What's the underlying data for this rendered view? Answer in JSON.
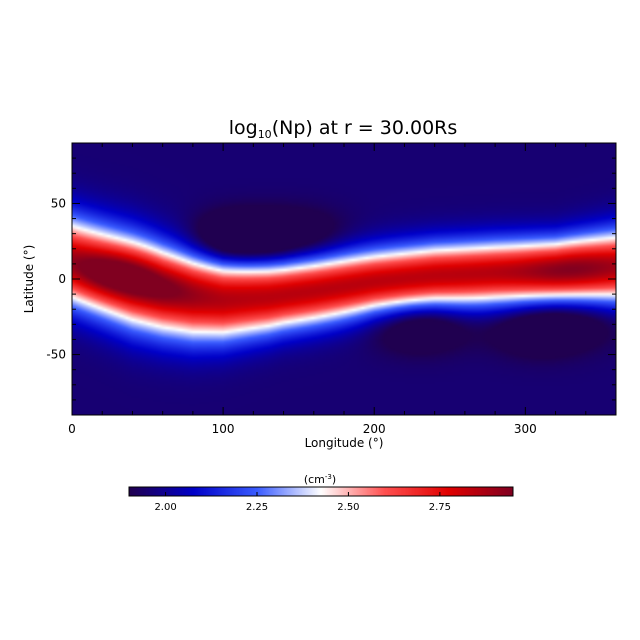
{
  "chart_data": {
    "type": "heatmap",
    "title": {
      "prefix": "log",
      "subscript": "10",
      "suffix": "(Np) at r = 30.00Rs"
    },
    "xlabel": "Longitude (°)",
    "ylabel": "Latitude (°)",
    "xlim": [
      0,
      360
    ],
    "ylim": [
      -90,
      90
    ],
    "xticks": [
      0,
      100,
      200,
      300
    ],
    "yticks": [
      50,
      0,
      -50
    ],
    "colorbar": {
      "label_prefix": "(cm",
      "label_superscript": "-3",
      "label_suffix": ")",
      "range": [
        1.9,
        2.95
      ],
      "ticks": [
        "2.00",
        "2.25",
        "2.50",
        "2.75"
      ],
      "colormap": [
        "#200050",
        "#0000c8",
        "#3a5cff",
        "#ffffff",
        "#ff5050",
        "#e00000",
        "#800020"
      ]
    },
    "field": {
      "description_units": "log10 density",
      "background_value": 1.95,
      "band_peak_value": 2.85,
      "band_center_latitude_by_longitude": [
        [
          0,
          12
        ],
        [
          20,
          5
        ],
        [
          40,
          -2
        ],
        [
          60,
          -8
        ],
        [
          80,
          -12
        ],
        [
          100,
          -14
        ],
        [
          130,
          -12
        ],
        [
          160,
          -8
        ],
        [
          200,
          -2
        ],
        [
          240,
          2
        ],
        [
          280,
          4
        ],
        [
          320,
          5
        ],
        [
          360,
          8
        ]
      ],
      "band_halfwidth_by_longitude": [
        [
          0,
          30
        ],
        [
          40,
          32
        ],
        [
          80,
          30
        ],
        [
          100,
          28
        ],
        [
          140,
          24
        ],
        [
          200,
          22
        ],
        [
          260,
          22
        ],
        [
          320,
          22
        ],
        [
          360,
          25
        ]
      ],
      "blue_blobs": [
        {
          "lon": 110,
          "lat": 25,
          "amp": -0.3
        },
        {
          "lon": 150,
          "lat": 28,
          "amp": -0.15
        },
        {
          "lon": 230,
          "lat": -30,
          "amp": -0.2
        },
        {
          "lon": 310,
          "lat": -32,
          "amp": -0.2
        },
        {
          "lon": 340,
          "lat": -25,
          "amp": -0.1
        }
      ],
      "red_peaks": [
        {
          "lon": 30,
          "lat": 5,
          "amp": 0.2
        },
        {
          "lon": 60,
          "lat": -5,
          "amp": 0.1
        },
        {
          "lon": 330,
          "lat": 8,
          "amp": 0.1
        }
      ]
    }
  }
}
